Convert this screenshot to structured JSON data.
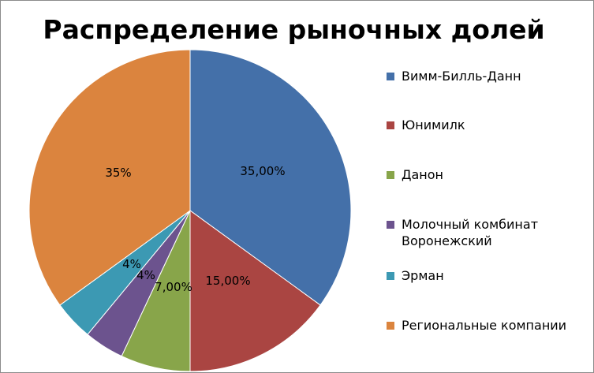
{
  "chart_data": {
    "type": "pie",
    "title": "Распределение рыночных долей",
    "legend_position": "right",
    "slices": [
      {
        "label": "Вимм-Билль-Данн",
        "value": 35,
        "data_label": "35,00%",
        "color": "#4470a9"
      },
      {
        "label": "Юнимилк",
        "value": 15,
        "data_label": "15,00%",
        "color": "#aa4542"
      },
      {
        "label": "Данон",
        "value": 7,
        "data_label": "7,00%",
        "color": "#88a54a"
      },
      {
        "label": "Молочный комбинат Воронежский",
        "value": 4,
        "data_label": "4%",
        "color": "#6c538e"
      },
      {
        "label": "Эрман",
        "value": 4,
        "data_label": "4%",
        "color": "#3c99b3"
      },
      {
        "label": "Региональные компании",
        "value": 35,
        "data_label": "35%",
        "color": "#db843e"
      }
    ]
  }
}
